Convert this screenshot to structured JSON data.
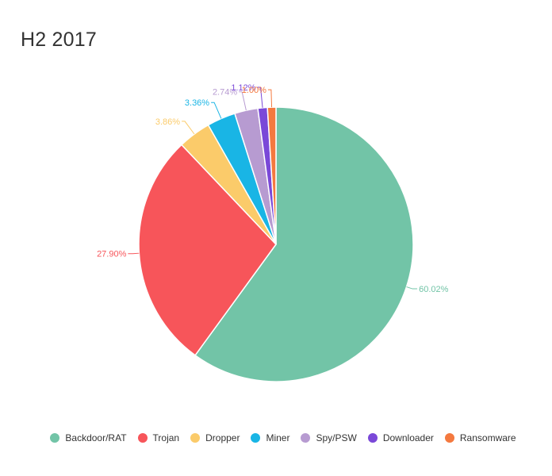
{
  "chart_data": {
    "type": "pie",
    "title": "H2 2017",
    "legend_position": "bottom",
    "slices": [
      {
        "name": "Backdoor/RAT",
        "value": 60.02,
        "label": "60.02%",
        "color": "#72c4a7"
      },
      {
        "name": "Trojan",
        "value": 27.9,
        "label": "27.90%",
        "color": "#f7555a"
      },
      {
        "name": "Dropper",
        "value": 3.86,
        "label": "3.86%",
        "color": "#fbcb6a"
      },
      {
        "name": "Miner",
        "value": 3.36,
        "label": "3.36%",
        "color": "#19b5e5"
      },
      {
        "name": "Spy/PSW",
        "value": 2.74,
        "label": "2.74%",
        "color": "#b79bd1"
      },
      {
        "name": "Downloader",
        "value": 1.12,
        "label": "1.12%",
        "color": "#7a48d8"
      },
      {
        "name": "Ransomware",
        "value": 1.0,
        "label": "1.00%",
        "color": "#f4793f"
      }
    ]
  }
}
